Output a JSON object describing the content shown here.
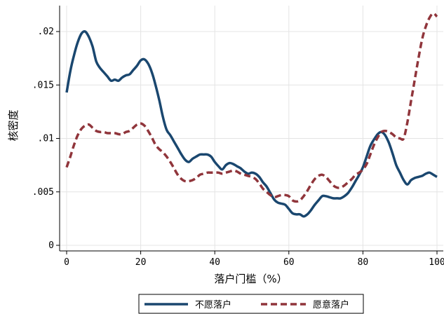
{
  "chart_data": {
    "type": "line",
    "xlabel": "落户门槛（%）",
    "ylabel": "核密度",
    "xlim": [
      0,
      100
    ],
    "ylim": [
      0,
      0.022
    ],
    "xticks": [
      0,
      20,
      40,
      60,
      80,
      100
    ],
    "xtick_labels": [
      "0",
      "20",
      "40",
      "60",
      "80",
      "100"
    ],
    "yticks": [
      0,
      0.005,
      0.01,
      0.015,
      0.02
    ],
    "ytick_labels": [
      "0",
      ".005",
      ".01",
      ".015",
      ".02"
    ],
    "grid": true,
    "legend_position": "bottom",
    "series": [
      {
        "name": "不愿落户",
        "color": "#1a476f",
        "style": "solid",
        "x": [
          0,
          1,
          2,
          3,
          4,
          5,
          6,
          7,
          8,
          9,
          10,
          11,
          12,
          13,
          14,
          15,
          16,
          17,
          18,
          19,
          20,
          21,
          22,
          23,
          24,
          25,
          26,
          27,
          28,
          29,
          30,
          31,
          32,
          33,
          34,
          35,
          36,
          37,
          38,
          39,
          40,
          41,
          42,
          43,
          44,
          45,
          46,
          47,
          48,
          49,
          50,
          51,
          52,
          53,
          54,
          55,
          56,
          57,
          58,
          59,
          60,
          61,
          62,
          63,
          64,
          65,
          66,
          67,
          68,
          69,
          70,
          71,
          72,
          73,
          74,
          75,
          76,
          77,
          78,
          79,
          80,
          81,
          82,
          83,
          84,
          85,
          86,
          87,
          88,
          89,
          90,
          91,
          92,
          93,
          94,
          95,
          96,
          97,
          98,
          99,
          100
        ],
        "y": [
          0.0143,
          0.0163,
          0.0178,
          0.019,
          0.0198,
          0.02,
          0.0195,
          0.0186,
          0.0172,
          0.0166,
          0.0162,
          0.0158,
          0.0154,
          0.0155,
          0.0154,
          0.0157,
          0.0159,
          0.016,
          0.0164,
          0.0168,
          0.0173,
          0.0174,
          0.017,
          0.0162,
          0.015,
          0.0136,
          0.012,
          0.0108,
          0.0103,
          0.0097,
          0.0091,
          0.0085,
          0.008,
          0.0078,
          0.0081,
          0.0083,
          0.0085,
          0.0085,
          0.0085,
          0.0083,
          0.0078,
          0.0074,
          0.0071,
          0.0075,
          0.0077,
          0.0076,
          0.0074,
          0.0072,
          0.0069,
          0.0067,
          0.0068,
          0.0067,
          0.0064,
          0.0059,
          0.0055,
          0.0049,
          0.0043,
          0.004,
          0.0039,
          0.0038,
          0.0034,
          0.003,
          0.0029,
          0.0029,
          0.0027,
          0.0029,
          0.0033,
          0.0038,
          0.0042,
          0.0046,
          0.0046,
          0.0045,
          0.0044,
          0.0044,
          0.0044,
          0.0046,
          0.0049,
          0.0054,
          0.006,
          0.0066,
          0.0073,
          0.0083,
          0.0093,
          0.0099,
          0.0104,
          0.0106,
          0.0103,
          0.0096,
          0.0086,
          0.0075,
          0.0068,
          0.0061,
          0.0057,
          0.0061,
          0.0063,
          0.0064,
          0.0065,
          0.0067,
          0.0068,
          0.0066,
          0.0064
        ]
      },
      {
        "name": "愿意落户",
        "color": "#90353b",
        "style": "dashed",
        "x": [
          0,
          1,
          2,
          3,
          4,
          5,
          6,
          7,
          8,
          9,
          10,
          11,
          12,
          13,
          14,
          15,
          16,
          17,
          18,
          19,
          20,
          21,
          22,
          23,
          24,
          25,
          26,
          27,
          28,
          29,
          30,
          31,
          32,
          33,
          34,
          35,
          36,
          37,
          38,
          39,
          40,
          41,
          42,
          43,
          44,
          45,
          46,
          47,
          48,
          49,
          50,
          51,
          52,
          53,
          54,
          55,
          56,
          57,
          58,
          59,
          60,
          61,
          62,
          63,
          64,
          65,
          66,
          67,
          68,
          69,
          70,
          71,
          72,
          73,
          74,
          75,
          76,
          77,
          78,
          79,
          80,
          81,
          82,
          83,
          84,
          85,
          86,
          87,
          88,
          89,
          90,
          91,
          92,
          93,
          94,
          95,
          96,
          97,
          98,
          99,
          100
        ],
        "y": [
          0.0073,
          0.0083,
          0.0094,
          0.0103,
          0.0109,
          0.0112,
          0.0113,
          0.011,
          0.0107,
          0.0106,
          0.0106,
          0.0105,
          0.0105,
          0.0105,
          0.0104,
          0.0104,
          0.0106,
          0.0107,
          0.011,
          0.0113,
          0.0114,
          0.0112,
          0.0107,
          0.0101,
          0.0094,
          0.009,
          0.0087,
          0.0083,
          0.0078,
          0.0072,
          0.0066,
          0.0062,
          0.006,
          0.006,
          0.0061,
          0.0063,
          0.0066,
          0.0067,
          0.0068,
          0.0068,
          0.0068,
          0.0068,
          0.0067,
          0.0068,
          0.0069,
          0.007,
          0.0069,
          0.0067,
          0.0066,
          0.0065,
          0.0064,
          0.0062,
          0.0058,
          0.0053,
          0.005,
          0.0047,
          0.0045,
          0.0046,
          0.0047,
          0.0047,
          0.0046,
          0.0042,
          0.0041,
          0.0042,
          0.0046,
          0.0051,
          0.0057,
          0.0062,
          0.0065,
          0.0066,
          0.0064,
          0.006,
          0.0056,
          0.0054,
          0.0054,
          0.0056,
          0.0059,
          0.0062,
          0.0066,
          0.0068,
          0.0071,
          0.0076,
          0.0085,
          0.0094,
          0.0101,
          0.0106,
          0.0107,
          0.0106,
          0.0104,
          0.0101,
          0.01,
          0.01,
          0.0115,
          0.0135,
          0.0155,
          0.0175,
          0.0193,
          0.0205,
          0.0213,
          0.0217,
          0.0214
        ]
      }
    ]
  }
}
